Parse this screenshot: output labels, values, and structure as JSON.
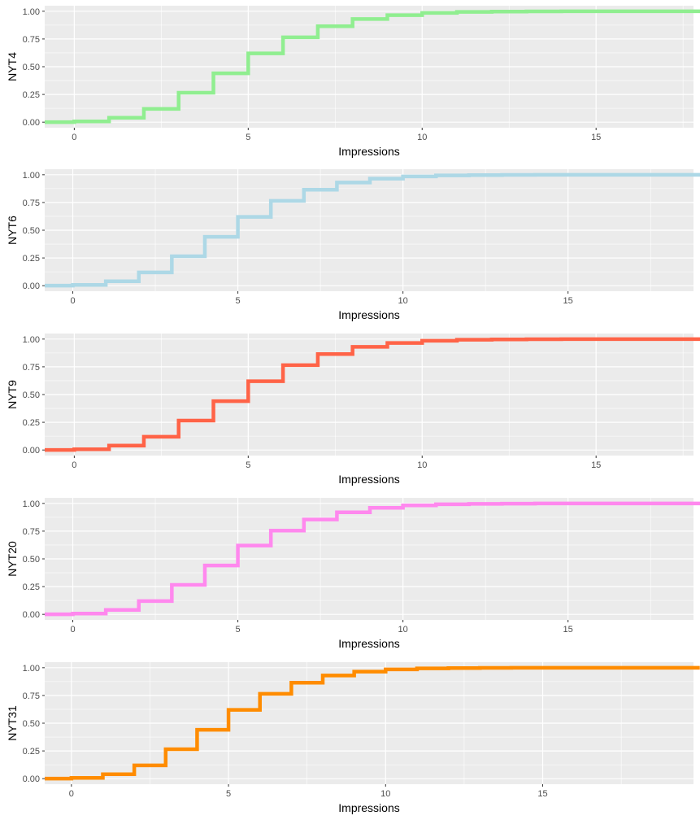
{
  "chart_data": [
    {
      "type": "line",
      "step": true,
      "xlabel": "Impressions",
      "ylabel": "NYT4",
      "color": "#90EE90",
      "xlim": [
        -0.85,
        17.8
      ],
      "ylim": [
        -0.05,
        1.05
      ],
      "xticks": [
        0,
        5,
        10,
        15
      ],
      "yticks": [
        0.0,
        0.25,
        0.5,
        0.75,
        1.0
      ],
      "ytick_labels": [
        "0.00",
        "0.25",
        "0.50",
        "0.75",
        "1.00"
      ],
      "grid": true,
      "x": [
        0,
        1,
        2,
        3,
        4,
        5,
        6,
        7,
        8,
        9,
        10,
        11,
        12,
        13,
        14,
        15,
        16,
        17,
        18
      ],
      "y": [
        0.007,
        0.04,
        0.12,
        0.265,
        0.44,
        0.62,
        0.765,
        0.865,
        0.93,
        0.965,
        0.985,
        0.994,
        0.997,
        0.999,
        0.9995,
        1.0,
        1.0,
        1.0,
        1.0
      ]
    },
    {
      "type": "line",
      "step": true,
      "xlabel": "Impressions",
      "ylabel": "NYT6",
      "color": "#ADD8E6",
      "xlim": [
        -0.85,
        18.8
      ],
      "ylim": [
        -0.05,
        1.05
      ],
      "xticks": [
        0,
        5,
        10,
        15
      ],
      "yticks": [
        0.0,
        0.25,
        0.5,
        0.75,
        1.0
      ],
      "ytick_labels": [
        "0.00",
        "0.25",
        "0.50",
        "0.75",
        "1.00"
      ],
      "grid": true,
      "x": [
        0,
        1,
        2,
        3,
        4,
        5,
        6,
        7,
        8,
        9,
        10,
        11,
        12,
        13,
        14,
        15,
        16,
        17,
        18,
        19
      ],
      "y": [
        0.007,
        0.04,
        0.12,
        0.265,
        0.44,
        0.62,
        0.765,
        0.865,
        0.93,
        0.965,
        0.985,
        0.994,
        0.997,
        0.999,
        0.9995,
        1.0,
        1.0,
        1.0,
        1.0,
        1.0
      ]
    },
    {
      "type": "line",
      "step": true,
      "xlabel": "Impressions",
      "ylabel": "NYT9",
      "color": "#FF6347",
      "xlim": [
        -0.85,
        17.8
      ],
      "ylim": [
        -0.05,
        1.05
      ],
      "xticks": [
        0,
        5,
        10,
        15
      ],
      "yticks": [
        0.0,
        0.25,
        0.5,
        0.75,
        1.0
      ],
      "ytick_labels": [
        "0.00",
        "0.25",
        "0.50",
        "0.75",
        "1.00"
      ],
      "grid": true,
      "x": [
        0,
        1,
        2,
        3,
        4,
        5,
        6,
        7,
        8,
        9,
        10,
        11,
        12,
        13,
        14,
        15,
        16,
        17,
        18
      ],
      "y": [
        0.007,
        0.04,
        0.12,
        0.265,
        0.44,
        0.62,
        0.765,
        0.865,
        0.93,
        0.965,
        0.985,
        0.994,
        0.997,
        0.999,
        0.9995,
        1.0,
        1.0,
        1.0,
        1.0
      ]
    },
    {
      "type": "line",
      "step": true,
      "xlabel": "Impressions",
      "ylabel": "NYT20",
      "color": "#FF88EE",
      "xlim": [
        -0.85,
        18.8
      ],
      "ylim": [
        -0.05,
        1.05
      ],
      "xticks": [
        0,
        5,
        10,
        15
      ],
      "yticks": [
        0.0,
        0.25,
        0.5,
        0.75,
        1.0
      ],
      "ytick_labels": [
        "0.00",
        "0.25",
        "0.50",
        "0.75",
        "1.00"
      ],
      "grid": true,
      "x": [
        0,
        1,
        2,
        3,
        4,
        5,
        6,
        7,
        8,
        9,
        10,
        11,
        12,
        13,
        14,
        15,
        16,
        17,
        18,
        19
      ],
      "y": [
        0.007,
        0.04,
        0.12,
        0.265,
        0.44,
        0.62,
        0.755,
        0.855,
        0.92,
        0.96,
        0.982,
        0.992,
        0.996,
        0.998,
        0.9995,
        1.0,
        1.0,
        1.0,
        1.0,
        1.0
      ]
    },
    {
      "type": "line",
      "step": true,
      "xlabel": "Impressions",
      "ylabel": "NYT31",
      "color": "#FF8C00",
      "xlim": [
        -0.85,
        19.8
      ],
      "ylim": [
        -0.05,
        1.05
      ],
      "xticks": [
        0,
        5,
        10,
        15
      ],
      "yticks": [
        0.0,
        0.25,
        0.5,
        0.75,
        1.0
      ],
      "ytick_labels": [
        "0.00",
        "0.25",
        "0.50",
        "0.75",
        "1.00"
      ],
      "grid": true,
      "x": [
        0,
        1,
        2,
        3,
        4,
        5,
        6,
        7,
        8,
        9,
        10,
        11,
        12,
        13,
        14,
        15,
        16,
        17,
        18,
        19,
        20
      ],
      "y": [
        0.007,
        0.04,
        0.12,
        0.265,
        0.44,
        0.62,
        0.765,
        0.865,
        0.93,
        0.965,
        0.985,
        0.994,
        0.997,
        0.999,
        0.9995,
        1.0,
        1.0,
        1.0,
        1.0,
        1.0,
        1.0
      ]
    }
  ]
}
